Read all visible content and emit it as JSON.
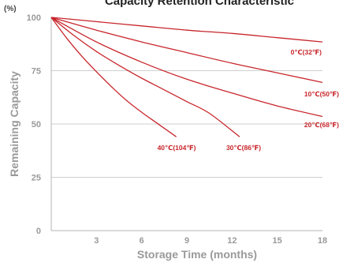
{
  "chart_data": {
    "type": "line",
    "title": "Capacity Retention Characteristic",
    "xlabel": "Storage Time (months)",
    "ylabel": "Remaining Capacity",
    "y_unit": "(%)",
    "xlim": [
      0,
      18
    ],
    "ylim": [
      0,
      100
    ],
    "x_ticks": [
      3,
      6,
      9,
      12,
      15,
      18
    ],
    "y_ticks": [
      0,
      25,
      50,
      75,
      100
    ],
    "grid": "horizontal",
    "line_color": "#c8262c",
    "series": [
      {
        "name": "0℃(32℉)",
        "x": [
          0,
          3,
          6,
          9,
          12,
          15,
          18
        ],
        "y": [
          100,
          98,
          96,
          94,
          92.5,
          90.5,
          88.5
        ]
      },
      {
        "name": "10℃(50℉)",
        "x": [
          0,
          3,
          6,
          9,
          12,
          15,
          18
        ],
        "y": [
          100,
          94,
          88.5,
          83.5,
          78.5,
          74,
          69.5
        ]
      },
      {
        "name": "20℃(68℉)",
        "x": [
          0,
          3,
          6,
          9,
          12,
          15,
          18
        ],
        "y": [
          100,
          88.5,
          79,
          71,
          64.5,
          58.5,
          53.5
        ]
      },
      {
        "name": "30℃(86℉)",
        "x": [
          0,
          1.5,
          3,
          4.5,
          6,
          7.5,
          9,
          10.5,
          12.5
        ],
        "y": [
          100,
          91.5,
          84,
          77.5,
          71.5,
          66,
          60.5,
          55,
          44
        ]
      },
      {
        "name": "40℃(104℉)",
        "x": [
          0,
          1,
          2,
          3,
          4,
          5,
          6,
          7,
          8.3
        ],
        "y": [
          100,
          90.5,
          82,
          74.5,
          67.5,
          61,
          55.5,
          50.5,
          44
        ]
      }
    ]
  }
}
